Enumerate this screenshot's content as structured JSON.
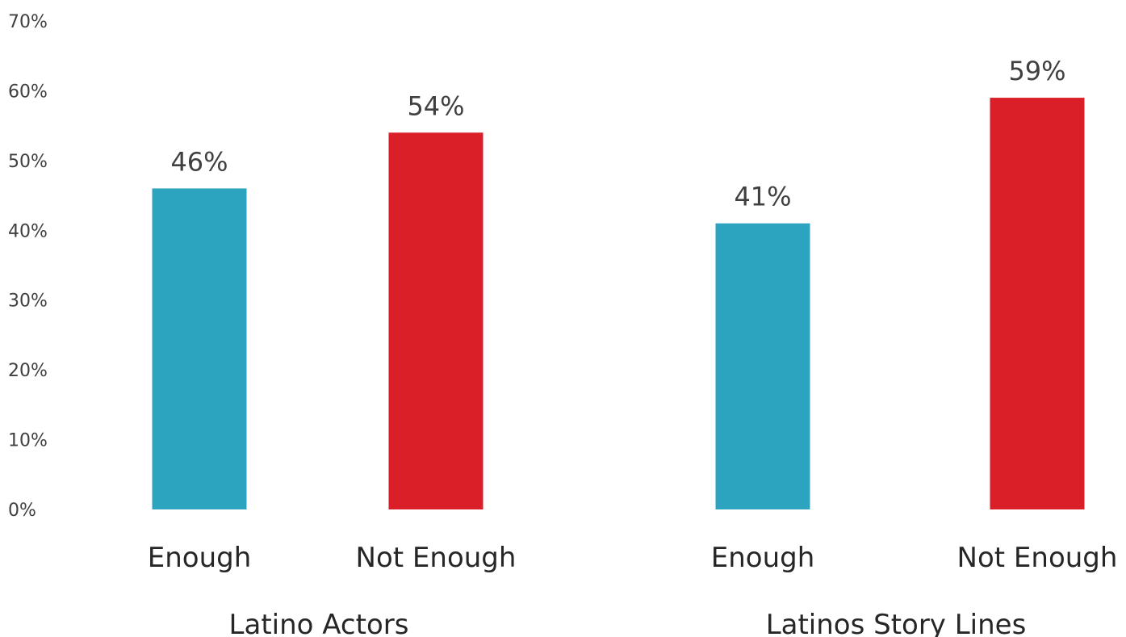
{
  "chart_data": {
    "type": "bar",
    "title": "",
    "xlabel": "",
    "ylabel": "",
    "ylim": [
      0,
      0.7
    ],
    "yticks": [
      "0%",
      "10%",
      "20%",
      "30%",
      "40%",
      "50%",
      "60%",
      "70%"
    ],
    "grid": false,
    "legend": "none",
    "colors": {
      "Enough": "#2ca3bf",
      "Not Enough": "#da1f28"
    },
    "groups": [
      {
        "name": "Latino Actors",
        "bars": [
          {
            "category": "Enough",
            "value": 0.46,
            "label": "46%"
          },
          {
            "category": "Not Enough",
            "value": 0.54,
            "label": "54%"
          }
        ]
      },
      {
        "name": "Latinos Story Lines",
        "bars": [
          {
            "category": "Enough",
            "value": 0.41,
            "label": "41%"
          },
          {
            "category": "Not Enough",
            "value": 0.59,
            "label": "59%"
          }
        ]
      }
    ]
  }
}
